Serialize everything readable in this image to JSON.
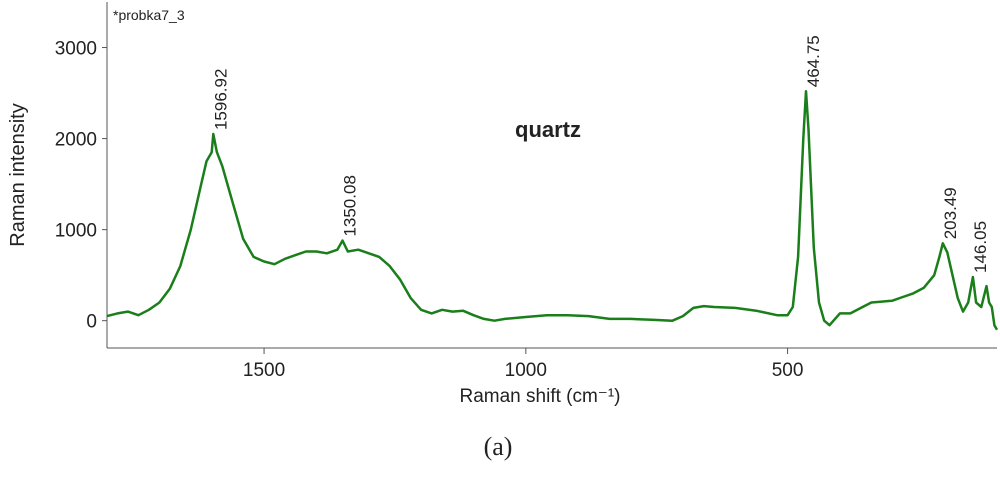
{
  "chart_data": {
    "type": "line",
    "sample_label": "*probka7_3",
    "annotation": "quartz",
    "x_label": "Raman shift (cm⁻¹)",
    "y_label": "Raman intensity",
    "caption": "(a)",
    "x": [
      1800,
      1780,
      1760,
      1740,
      1720,
      1700,
      1680,
      1660,
      1640,
      1620,
      1610,
      1600,
      1596.92,
      1590,
      1580,
      1560,
      1540,
      1520,
      1500,
      1480,
      1460,
      1440,
      1420,
      1400,
      1380,
      1360,
      1350.08,
      1340,
      1320,
      1300,
      1280,
      1260,
      1240,
      1220,
      1200,
      1180,
      1160,
      1140,
      1120,
      1100,
      1080,
      1060,
      1040,
      1000,
      960,
      920,
      880,
      840,
      800,
      760,
      720,
      700,
      680,
      660,
      640,
      600,
      560,
      520,
      500,
      490,
      480,
      470,
      464.75,
      460,
      450,
      440,
      430,
      420,
      400,
      380,
      360,
      340,
      320,
      300,
      280,
      260,
      240,
      220,
      210,
      203.49,
      195,
      185,
      175,
      165,
      155,
      146.05,
      140,
      130,
      120,
      115,
      110,
      105,
      100
    ],
    "series": [
      {
        "name": "probka7_3",
        "color": "#1a7f1a",
        "values": [
          50,
          80,
          100,
          60,
          120,
          200,
          350,
          600,
          1000,
          1500,
          1750,
          1850,
          2050,
          1850,
          1700,
          1300,
          900,
          700,
          650,
          620,
          680,
          720,
          760,
          760,
          740,
          780,
          880,
          760,
          780,
          740,
          700,
          600,
          450,
          250,
          120,
          80,
          120,
          100,
          110,
          60,
          20,
          0,
          20,
          40,
          60,
          60,
          50,
          20,
          20,
          10,
          0,
          50,
          140,
          160,
          150,
          140,
          110,
          60,
          60,
          150,
          700,
          2000,
          2520,
          2100,
          800,
          200,
          0,
          -50,
          80,
          80,
          140,
          200,
          210,
          220,
          260,
          300,
          360,
          500,
          700,
          850,
          750,
          500,
          250,
          100,
          200,
          480,
          200,
          150,
          380,
          200,
          150,
          -50,
          -100
        ]
      }
    ],
    "peak_labels": [
      {
        "text": "1596.92",
        "x": 1596.92,
        "y": 2050
      },
      {
        "text": "1350.08",
        "x": 1350.08,
        "y": 880
      },
      {
        "text": "464.75",
        "x": 464.75,
        "y": 2520
      },
      {
        "text": "203.49",
        "x": 203.49,
        "y": 850
      },
      {
        "text": "146.05",
        "x": 146.05,
        "y": 480
      }
    ],
    "xlim": [
      1800,
      100
    ],
    "ylim": [
      -300,
      3500
    ],
    "xticks": [
      1500,
      1000,
      500
    ],
    "yticks": [
      0,
      1000,
      2000,
      3000
    ]
  }
}
